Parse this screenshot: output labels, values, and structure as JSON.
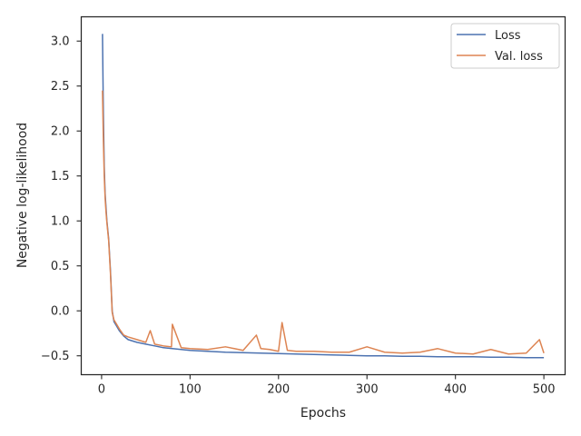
{
  "chart_data": {
    "type": "line",
    "title": "",
    "xlabel": "Epochs",
    "ylabel": "Negative log-likelihood",
    "xlim": [
      -23,
      524
    ],
    "ylim": [
      -0.71,
      3.27
    ],
    "xticks": [
      0,
      100,
      200,
      300,
      400,
      500
    ],
    "xtick_labels": [
      "0",
      "100",
      "200",
      "300",
      "400",
      "500"
    ],
    "yticks": [
      -0.5,
      0.0,
      0.5,
      1.0,
      1.5,
      2.0,
      2.5,
      3.0
    ],
    "ytick_labels": [
      "−0.5",
      "0.0",
      "0.5",
      "1.0",
      "1.5",
      "2.0",
      "2.5",
      "3.0"
    ],
    "grid": false,
    "legend_position": "top-right",
    "series": [
      {
        "name": "Loss",
        "color": "#4c72b0",
        "x": [
          1,
          2,
          3,
          4,
          5,
          6,
          8,
          10,
          12,
          14,
          17,
          20,
          25,
          30,
          40,
          50,
          60,
          70,
          80,
          90,
          100,
          120,
          140,
          160,
          180,
          200,
          220,
          240,
          260,
          280,
          300,
          320,
          340,
          360,
          380,
          400,
          420,
          440,
          460,
          480,
          500
        ],
        "values": [
          3.08,
          2.2,
          1.6,
          1.3,
          1.15,
          1.0,
          0.8,
          0.45,
          0.0,
          -0.12,
          -0.17,
          -0.22,
          -0.28,
          -0.32,
          -0.35,
          -0.37,
          -0.39,
          -0.41,
          -0.42,
          -0.43,
          -0.44,
          -0.45,
          -0.46,
          -0.465,
          -0.47,
          -0.475,
          -0.48,
          -0.485,
          -0.49,
          -0.495,
          -0.5,
          -0.5,
          -0.505,
          -0.505,
          -0.51,
          -0.51,
          -0.51,
          -0.515,
          -0.515,
          -0.52,
          -0.52
        ]
      },
      {
        "name": "Val. loss",
        "color": "#dd8452",
        "x": [
          1,
          2,
          3,
          4,
          5,
          6,
          8,
          10,
          12,
          14,
          17,
          20,
          25,
          30,
          40,
          50,
          55,
          60,
          70,
          79,
          80,
          90,
          100,
          120,
          140,
          150,
          160,
          175,
          180,
          190,
          200,
          204,
          210,
          220,
          240,
          260,
          280,
          300,
          320,
          340,
          360,
          380,
          400,
          420,
          440,
          460,
          480,
          495,
          500
        ],
        "values": [
          2.45,
          1.9,
          1.5,
          1.25,
          1.1,
          0.98,
          0.78,
          0.42,
          -0.02,
          -0.1,
          -0.15,
          -0.2,
          -0.27,
          -0.29,
          -0.32,
          -0.35,
          -0.22,
          -0.37,
          -0.39,
          -0.4,
          -0.15,
          -0.41,
          -0.42,
          -0.43,
          -0.4,
          -0.42,
          -0.44,
          -0.27,
          -0.42,
          -0.43,
          -0.45,
          -0.13,
          -0.44,
          -0.45,
          -0.45,
          -0.46,
          -0.46,
          -0.4,
          -0.46,
          -0.47,
          -0.46,
          -0.42,
          -0.47,
          -0.48,
          -0.43,
          -0.48,
          -0.47,
          -0.32,
          -0.47
        ]
      }
    ]
  }
}
